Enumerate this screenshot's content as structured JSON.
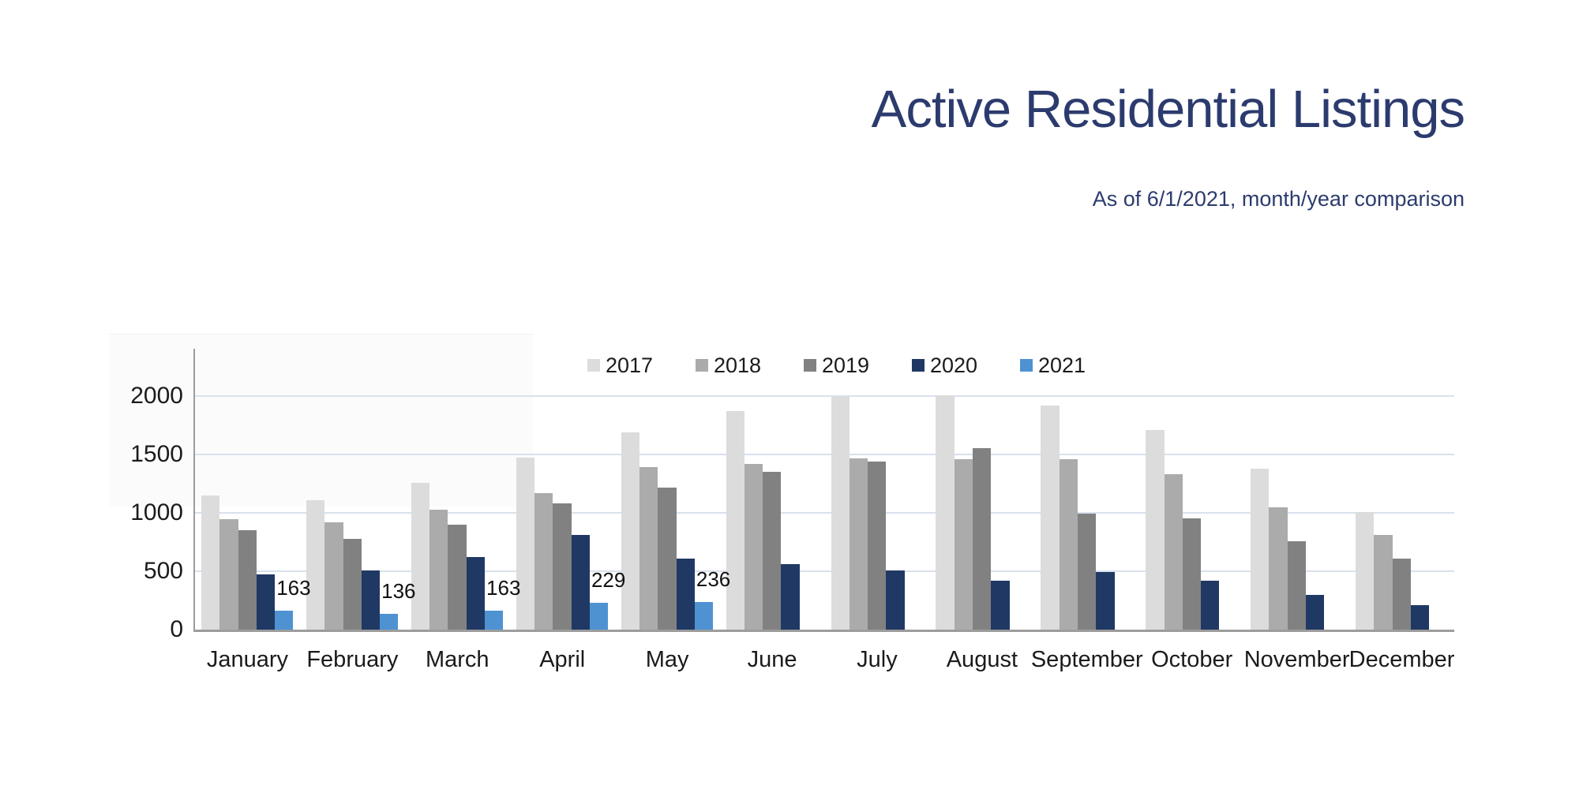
{
  "title": "Active Residential Listings",
  "subtitle": "As of 6/1/2021, month/year comparison",
  "colors": {
    "title_text": "#2C3B6E",
    "gridline": "#D8E1ED",
    "axis": "#9C9C9C",
    "tick_text": "#1B1B1B",
    "series_2017": "#DCDCDC",
    "series_2018": "#ABABAB",
    "series_2019": "#818181",
    "series_2020": "#203864",
    "series_2021": "#4E92D2"
  },
  "chart_data": {
    "type": "bar",
    "title": "Active Residential Listings",
    "subtitle": "As of 6/1/2021, month/year comparison",
    "categories": [
      "January",
      "February",
      "March",
      "April",
      "May",
      "June",
      "July",
      "August",
      "September",
      "October",
      "November",
      "December"
    ],
    "series": [
      {
        "name": "2017",
        "color": "#DCDCDC",
        "values": [
          1150,
          1105,
          1260,
          1470,
          1690,
          1870,
          1990,
          2010,
          1920,
          1710,
          1380,
          1010
        ]
      },
      {
        "name": "2018",
        "color": "#ABABAB",
        "values": [
          945,
          920,
          1030,
          1170,
          1390,
          1420,
          1465,
          1460,
          1460,
          1330,
          1050,
          810
        ]
      },
      {
        "name": "2019",
        "color": "#818181",
        "values": [
          850,
          780,
          900,
          1080,
          1215,
          1350,
          1440,
          1555,
          990,
          950,
          760,
          610
        ]
      },
      {
        "name": "2020",
        "color": "#203864",
        "values": [
          470,
          510,
          620,
          810,
          610,
          560,
          510,
          420,
          490,
          420,
          300,
          210
        ]
      },
      {
        "name": "2021",
        "color": "#4E92D2",
        "values": [
          163,
          136,
          163,
          229,
          236,
          null,
          null,
          null,
          null,
          null,
          null,
          null
        ]
      }
    ],
    "data_labels": {
      "series": "2021",
      "values": [
        163,
        136,
        163,
        229,
        236
      ]
    },
    "xlabel": "",
    "ylabel": "",
    "yticks": [
      0,
      500,
      1000,
      1500,
      2000
    ],
    "ylim": [
      0,
      2400
    ],
    "grid": true,
    "legend_position": "top",
    "legend_entries": [
      "2017",
      "2018",
      "2019",
      "2020",
      "2021"
    ]
  }
}
